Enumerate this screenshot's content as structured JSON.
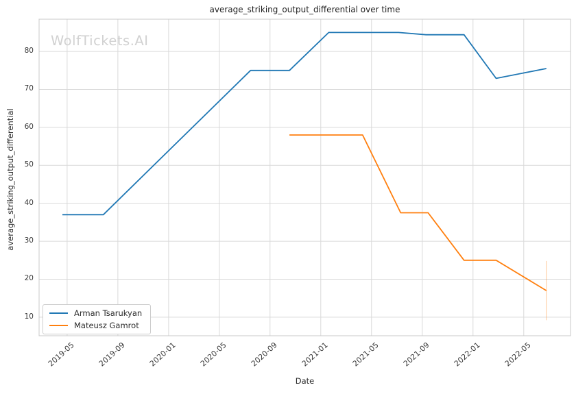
{
  "watermark": "WolfTickets.AI",
  "chart_data": {
    "type": "line",
    "title": "average_striking_output_differential over time",
    "xlabel": "Date",
    "ylabel": "average_striking_output_differential",
    "x_tick_labels": [
      "2019-05",
      "2019-09",
      "2020-01",
      "2020-05",
      "2020-09",
      "2021-01",
      "2021-05",
      "2021-09",
      "2022-01",
      "2022-05"
    ],
    "y_tick_labels": [
      10,
      20,
      30,
      40,
      50,
      60,
      70,
      80
    ],
    "xlim": [
      "2019-02-25",
      "2022-08-22"
    ],
    "ylim": [
      5.1,
      88.5
    ],
    "grid": true,
    "legend_position": "lower-left",
    "series": [
      {
        "name": "Arman Tsarukyan",
        "color": "#1f77b4",
        "points": [
          {
            "date": "2019-04-20",
            "value": 37
          },
          {
            "date": "2019-07-27",
            "value": 37
          },
          {
            "date": "2020-07-15",
            "value": 75
          },
          {
            "date": "2020-10-17",
            "value": 75
          },
          {
            "date": "2021-01-20",
            "value": 85
          },
          {
            "date": "2021-07-05",
            "value": 85
          },
          {
            "date": "2021-09-10",
            "value": 84.4
          },
          {
            "date": "2021-12-10",
            "value": 84.4
          },
          {
            "date": "2022-02-26",
            "value": 72.9
          },
          {
            "date": "2022-06-25",
            "value": 75.5
          }
        ]
      },
      {
        "name": "Mateusz Gamrot",
        "color": "#ff7f0e",
        "points": [
          {
            "date": "2020-10-17",
            "value": 58
          },
          {
            "date": "2021-04-10",
            "value": 58
          },
          {
            "date": "2021-07-10",
            "value": 37.5
          },
          {
            "date": "2021-09-15",
            "value": 37.5
          },
          {
            "date": "2021-12-10",
            "value": 25
          },
          {
            "date": "2022-02-26",
            "value": 25
          },
          {
            "date": "2022-06-25",
            "value": 17
          }
        ],
        "error_bar": {
          "date": "2022-06-25",
          "low": 9.2,
          "high": 24.8
        }
      }
    ]
  }
}
